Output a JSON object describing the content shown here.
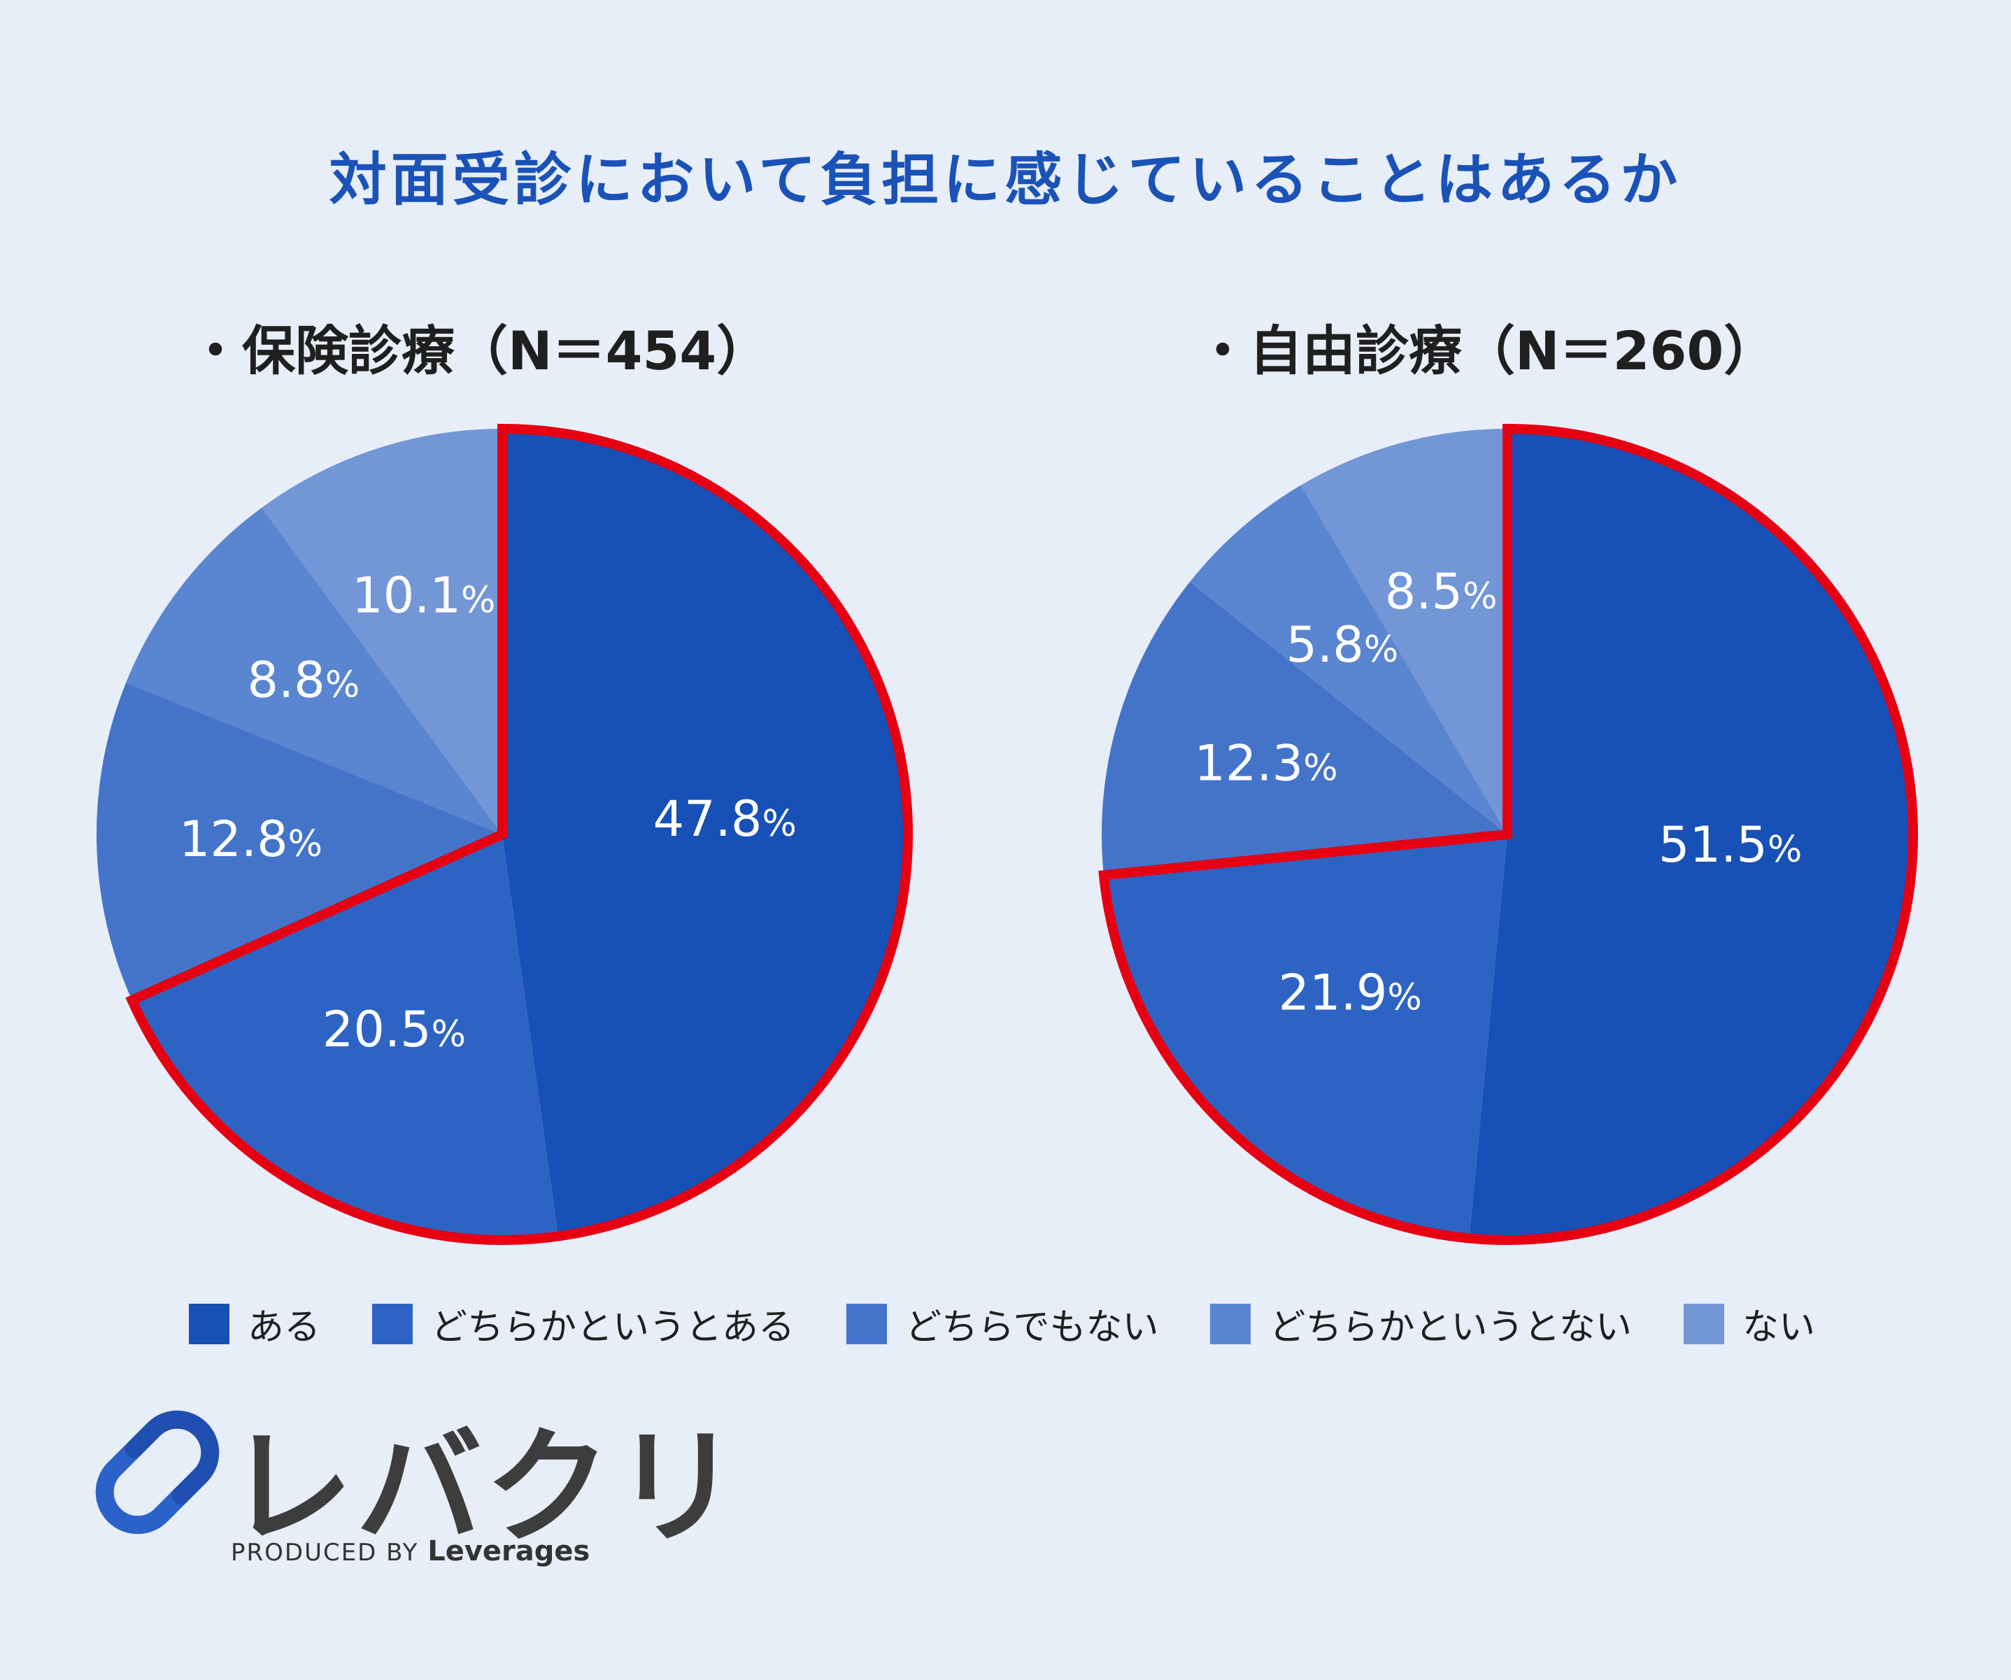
{
  "title": "対面受診において負担に感じていることはあるか",
  "subtitles": {
    "left": "・保険診療（N＝454）",
    "right": "・自由診療（N＝260）"
  },
  "colors": {
    "categories": [
      "#1750b6",
      "#2d64c4",
      "#4474ca",
      "#5a85d0",
      "#7296d6"
    ],
    "highlight": "#e60012",
    "label": "#ffffff"
  },
  "legend": [
    "ある",
    "どちらかというとある",
    "どちらでもない",
    "どちらかというとない",
    "ない"
  ],
  "chart_data": [
    {
      "type": "pie",
      "title": "保険診療（N＝454）",
      "categories": [
        "ある",
        "どちらかというとある",
        "どちらでもない",
        "どちらかというとない",
        "ない"
      ],
      "values": [
        47.8,
        20.5,
        12.8,
        8.8,
        10.1
      ],
      "labels": [
        "47.8",
        "20.5",
        "12.8",
        "8.8",
        "10.1"
      ],
      "highlighted": [
        "ある",
        "どちらかというとある"
      ]
    },
    {
      "type": "pie",
      "title": "自由診療（N＝260）",
      "categories": [
        "ある",
        "どちらかというとある",
        "どちらでもない",
        "どちらかというとない",
        "ない"
      ],
      "values": [
        51.5,
        21.9,
        12.3,
        5.8,
        8.5
      ],
      "labels": [
        "51.5",
        "21.9",
        "12.3",
        "5.8",
        "8.5"
      ],
      "highlighted": [
        "ある",
        "どちらかというとある"
      ]
    }
  ],
  "logo": {
    "name": "レバクリ",
    "produced_by": "PRODUCED BY",
    "brand": "Leverages"
  }
}
